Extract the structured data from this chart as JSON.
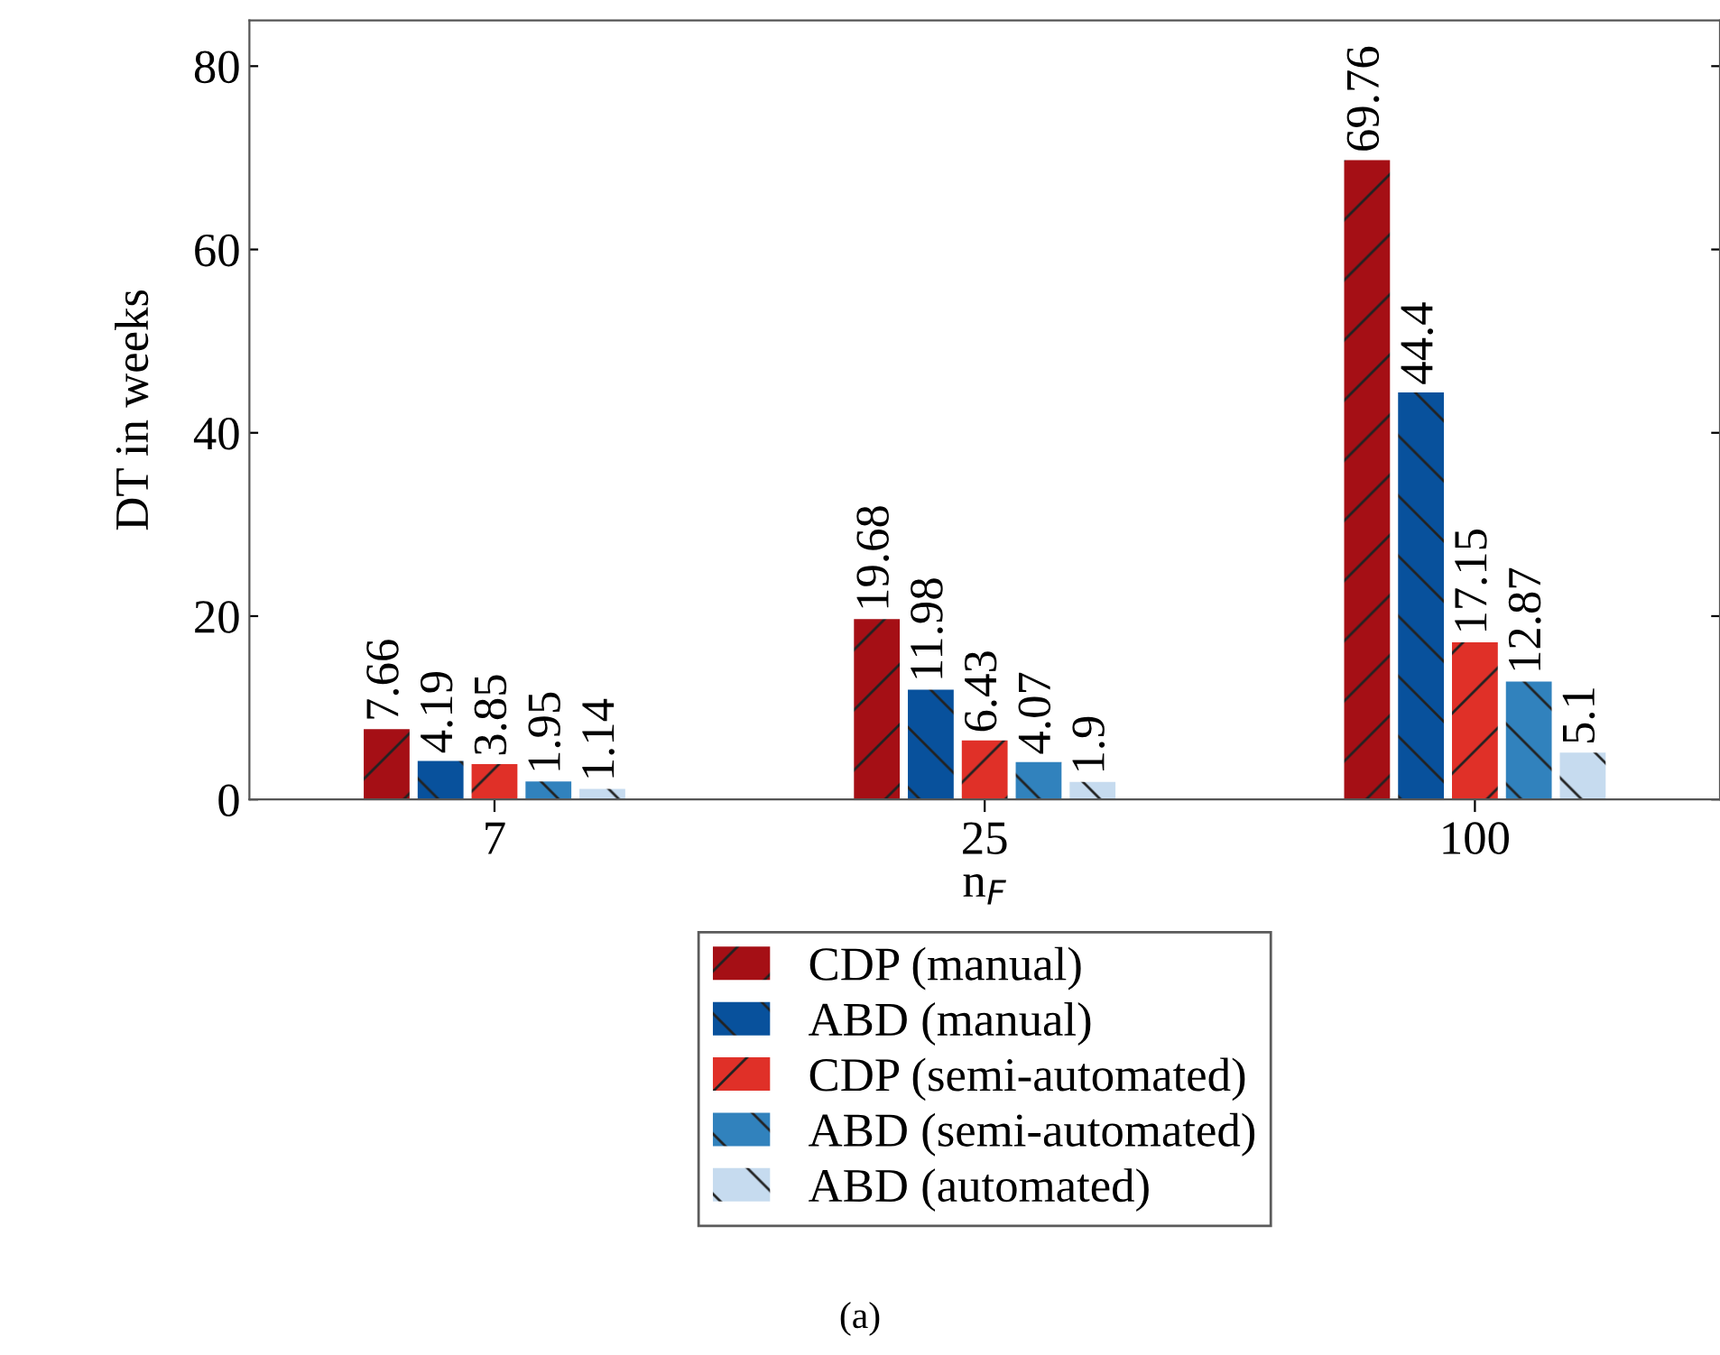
{
  "chart_data": {
    "type": "bar",
    "xlabel": "n$_{F}$",
    "ylabel": "DT in weeks",
    "categories": [
      "7",
      "25",
      "100"
    ],
    "series": [
      {
        "name": "CDP (manual)",
        "color": "#a50f15",
        "values": [
          7.66,
          19.68,
          69.76
        ]
      },
      {
        "name": "ABD (manual)",
        "color": "#08519c",
        "values": [
          4.19,
          11.98,
          44.4
        ]
      },
      {
        "name": "CDP (semi-automated)",
        "color": "#e03028",
        "values": [
          3.85,
          6.43,
          17.15
        ]
      },
      {
        "name": "ABD (semi-automated)",
        "color": "#3182bd",
        "values": [
          1.95,
          4.07,
          12.87
        ]
      },
      {
        "name": "ABD (automated)",
        "color": "#c6dbef",
        "values": [
          1.14,
          1.9,
          5.1
        ]
      }
    ],
    "ylim": [
      0,
      85
    ],
    "yticks": [
      0,
      20,
      40,
      60,
      80
    ],
    "data_labels": true,
    "grid": false,
    "legend": "bottom",
    "annotations": [
      "(a)"
    ]
  }
}
